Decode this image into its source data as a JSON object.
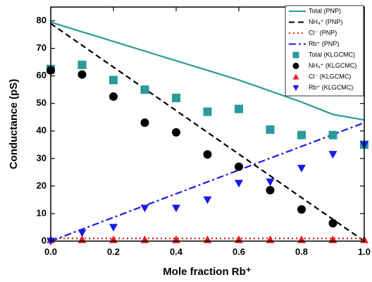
{
  "chart_data": {
    "type": "line",
    "xlabel": "Mole fraction Rb⁺",
    "ylabel": "Conductance (pS)",
    "xlim": [
      0,
      1
    ],
    "ylim": [
      0,
      85
    ],
    "xticks": [
      {
        "value": 0,
        "label": "0.0"
      },
      {
        "value": 0.2,
        "label": "0.2"
      },
      {
        "value": 0.4,
        "label": "0.4"
      },
      {
        "value": 0.6,
        "label": "0.6"
      },
      {
        "value": 0.8,
        "label": "0.8"
      },
      {
        "value": 1,
        "label": "1.0"
      }
    ],
    "yticks": [
      0,
      10,
      20,
      30,
      40,
      50,
      60,
      70,
      80
    ],
    "legend": "upper right",
    "series": [
      {
        "name": "Total (PNP)",
        "color": "#2a9a9a",
        "style": "solid",
        "x": [
          0,
          0.1,
          0.2,
          0.3,
          0.4,
          0.5,
          0.6,
          0.7,
          0.8,
          0.9,
          1
        ],
        "values": [
          79.5,
          76,
          72.5,
          69,
          65.5,
          62,
          58.5,
          54.5,
          50.5,
          46,
          44
        ]
      },
      {
        "name": "NH₄⁺ (PNP)",
        "color": "#000000",
        "style": "dashed",
        "x": [
          0,
          1
        ],
        "values": [
          79,
          0
        ]
      },
      {
        "name": "Cl⁻ (PNP)",
        "color": "#e02020",
        "style": "dotted",
        "x": [
          0,
          1
        ],
        "values": [
          1,
          1
        ]
      },
      {
        "name": "Rb⁺ (PNP)",
        "color": "#1a1ae0",
        "style": "dashdot",
        "x": [
          0,
          1
        ],
        "values": [
          0,
          43
        ]
      },
      {
        "name": "Total (KLGCMC)",
        "color": "#2a9a9a",
        "marker": "square",
        "x": [
          0,
          0.1,
          0.2,
          0.3,
          0.4,
          0.5,
          0.6,
          0.7,
          0.8,
          0.9,
          1
        ],
        "values": [
          62.5,
          64,
          58.5,
          55,
          52,
          47,
          48,
          40.5,
          38.5,
          38.5,
          35
        ]
      },
      {
        "name": "NH₄⁺ (KLGCMC)",
        "color": "#000000",
        "marker": "circle",
        "x": [
          0,
          0.1,
          0.2,
          0.3,
          0.4,
          0.5,
          0.6,
          0.7,
          0.8,
          0.9
        ],
        "values": [
          62,
          60.5,
          52.5,
          43,
          39.5,
          31.5,
          27,
          18.5,
          11.5,
          6.5
        ]
      },
      {
        "name": "Cl⁻ (KLGCMC)",
        "color": "#e82020",
        "marker": "triangle",
        "x": [
          0,
          0.1,
          0.2,
          0.3,
          0.4,
          0.5,
          0.6,
          0.7,
          0.8,
          0.9,
          1
        ],
        "values": [
          0.5,
          0.5,
          0.5,
          0.5,
          0.5,
          0.5,
          0.5,
          0.5,
          0.5,
          0.5,
          0.5
        ]
      },
      {
        "name": "Rb⁺ (KLGCMC)",
        "color": "#1a1ae8",
        "marker": "triangle-down",
        "x": [
          0,
          0.1,
          0.2,
          0.3,
          0.4,
          0.5,
          0.6,
          0.7,
          0.8,
          0.9,
          1
        ],
        "values": [
          0,
          3,
          5,
          12,
          12,
          15,
          21,
          21.5,
          26.5,
          31.5,
          35
        ]
      }
    ]
  }
}
